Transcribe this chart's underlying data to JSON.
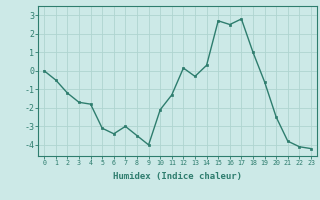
{
  "x": [
    0,
    1,
    2,
    3,
    4,
    5,
    6,
    7,
    8,
    9,
    10,
    11,
    12,
    13,
    14,
    15,
    16,
    17,
    18,
    19,
    20,
    21,
    22,
    23
  ],
  "y": [
    0,
    -0.5,
    -1.2,
    -1.7,
    -1.8,
    -3.1,
    -3.4,
    -3.0,
    -3.5,
    -4.0,
    -2.1,
    -1.3,
    0.15,
    -0.3,
    0.3,
    2.7,
    2.5,
    2.8,
    1.0,
    -0.6,
    -2.5,
    -3.8,
    -4.1,
    -4.2
  ],
  "line_color": "#2e7d6e",
  "marker": "s",
  "markersize": 2.0,
  "linewidth": 1.0,
  "bg_color": "#cce9e7",
  "grid_color": "#afd4d0",
  "xlabel": "Humidex (Indice chaleur)",
  "ylim": [
    -4.6,
    3.5
  ],
  "yticks": [
    -4,
    -3,
    -2,
    -1,
    0,
    1,
    2,
    3
  ],
  "xticks": [
    0,
    1,
    2,
    3,
    4,
    5,
    6,
    7,
    8,
    9,
    10,
    11,
    12,
    13,
    14,
    15,
    16,
    17,
    18,
    19,
    20,
    21,
    22,
    23
  ],
  "tick_color": "#2e7d6e",
  "label_color": "#2e7d6e",
  "axis_color": "#2e7d6e",
  "xlabel_fontsize": 6.5,
  "xtick_fontsize": 4.8,
  "ytick_fontsize": 6.0
}
